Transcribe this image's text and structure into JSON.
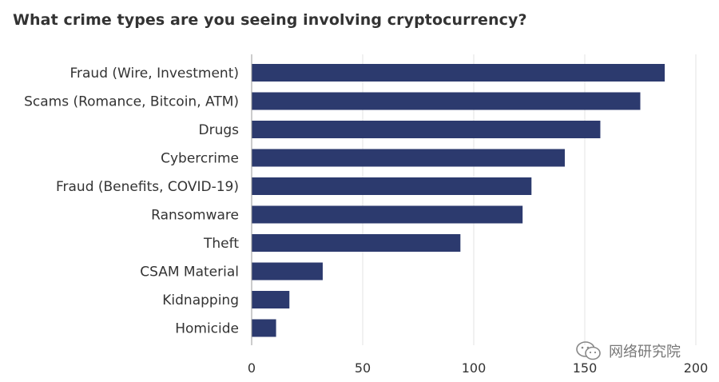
{
  "chart_data": {
    "type": "bar",
    "orientation": "horizontal",
    "title": "What crime types are you seeing involving cryptocurrency?",
    "categories": [
      "Fraud (Wire, Investment)",
      "Scams (Romance, Bitcoin, ATM)",
      "Drugs",
      "Cybercrime",
      "Fraud (Benefits, COVID-19)",
      "Ransomware",
      "Theft",
      "CSAM Material",
      "Kidnapping",
      "Homicide"
    ],
    "values": [
      186,
      175,
      157,
      141,
      126,
      122,
      94,
      32,
      17,
      11
    ],
    "xlim": [
      0,
      200
    ],
    "xticks": [
      "0",
      "50",
      "100",
      "150",
      "200"
    ],
    "grid": true,
    "bar_color": "#2c3a6e"
  },
  "watermark": {
    "icon": "wechat-icon",
    "text": "网络研究院"
  }
}
